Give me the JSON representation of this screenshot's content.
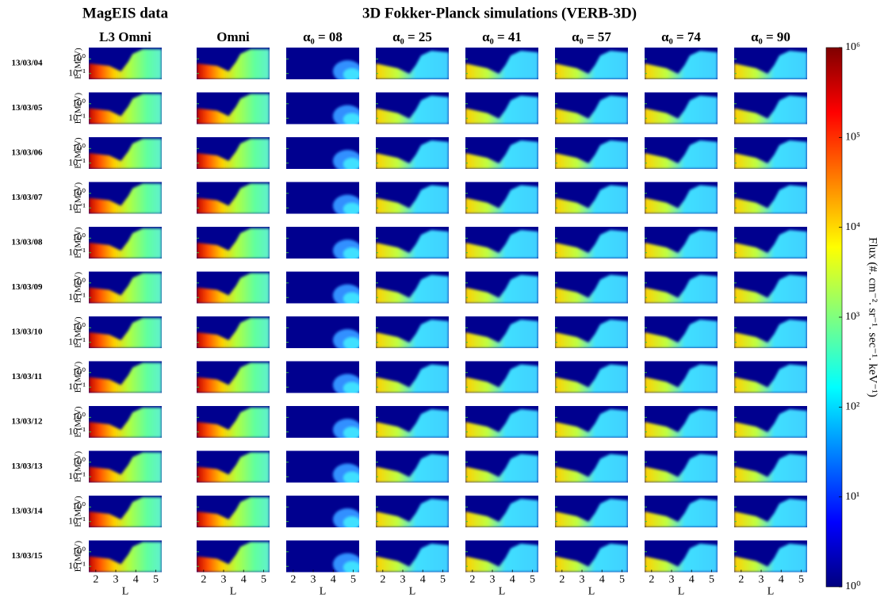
{
  "titles": {
    "left": "MagEIS data",
    "right": "3D Fokker-Planck simulations (VERB-3D)"
  },
  "columns": [
    "L3 Omni",
    "Omni",
    "α₀ = 08",
    "α₀ = 25",
    "α₀ = 41",
    "α₀ = 57",
    "α₀ = 74",
    "α₀ = 90"
  ],
  "rows": [
    "13/03/04",
    "13/03/05",
    "13/03/06",
    "13/03/07",
    "13/03/08",
    "13/03/09",
    "13/03/10",
    "13/03/11",
    "13/03/12",
    "13/03/13",
    "13/03/14",
    "13/03/15"
  ],
  "y_axis": {
    "label": "E (MeV)",
    "scale": "log",
    "ylim": [
      0.04,
      6
    ],
    "ticks": [
      {
        "value": 1,
        "label": "10⁰"
      },
      {
        "value": 0.1,
        "label": "10⁻¹"
      }
    ]
  },
  "x_axis": {
    "label": "L",
    "xlim": [
      1.65,
      5.3
    ],
    "ticks": [
      2,
      3,
      4,
      5
    ]
  },
  "colorbar": {
    "label": "Flux (#. cm⁻². sr⁻¹. sec⁻¹. keV⁻¹)",
    "scale": "log",
    "lim": [
      1,
      1000000
    ],
    "ticks": [
      {
        "value": 1,
        "label": "10⁰"
      },
      {
        "value": 10,
        "label": "10¹"
      },
      {
        "value": 100,
        "label": "10²"
      },
      {
        "value": 1000,
        "label": "10³"
      },
      {
        "value": 10000,
        "label": "10⁴"
      },
      {
        "value": 100000,
        "label": "10⁵"
      },
      {
        "value": 1000000,
        "label": "10⁶"
      }
    ]
  }
}
